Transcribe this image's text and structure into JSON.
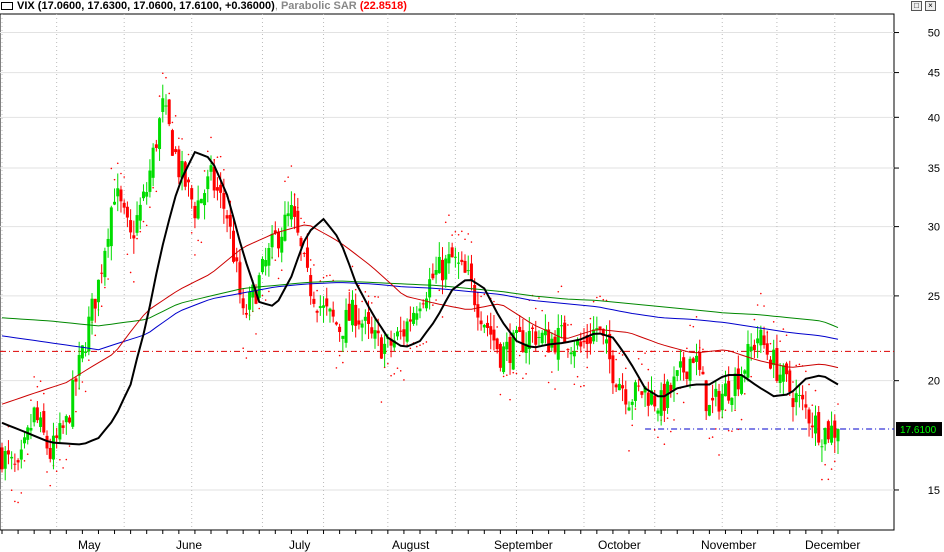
{
  "header": {
    "symbol": "VIX",
    "ohlc": "(17.0600, 17.6300, 17.0600, 17.6100, +0.36000)",
    "indicator": "Parabolic SAR",
    "indicator_value": "(22.8518)",
    "restore_icon": "restore-window-icon",
    "close_icon": "close-window-icon"
  },
  "colors": {
    "up_candle": "#00dd00",
    "down_candle": "#ff0000",
    "ma_fast": "#000000",
    "ma_red": "#cc0000",
    "ma_blue": "#0000cc",
    "ma_green": "#008800",
    "sar": "#ff0000",
    "resistance_line": "#dd0000",
    "support_line": "#0000cc",
    "price_box_bg": "#000000",
    "price_box_text": "#00ff00",
    "grid": "#bbbbbb"
  },
  "chart_data": {
    "type": "candlestick",
    "y_scale": "log",
    "ylim": [
      13.5,
      52.5
    ],
    "y_ticks": [
      15,
      20,
      25,
      30,
      35,
      40,
      45,
      50
    ],
    "x_labels": [
      "May",
      "June",
      "July",
      "August",
      "September",
      "October",
      "November",
      "December"
    ],
    "last_price_label": "17.6100",
    "horizontal_lines": [
      {
        "value": 21.6,
        "style": "dash-dot",
        "color": "red"
      },
      {
        "value": 17.61,
        "style": "dash-dot",
        "color": "blue"
      }
    ],
    "ma_fast": [
      [
        0,
        17.9
      ],
      [
        15,
        17.0
      ],
      [
        25,
        16.9
      ],
      [
        30,
        17.2
      ],
      [
        35,
        18.1
      ],
      [
        40,
        19.8
      ],
      [
        45,
        23.3
      ],
      [
        50,
        28.6
      ],
      [
        55,
        33.5
      ],
      [
        60,
        36.5
      ],
      [
        65,
        35.9
      ],
      [
        70,
        32.6
      ],
      [
        75,
        27.9
      ],
      [
        80,
        24.6
      ],
      [
        85,
        24.3
      ],
      [
        90,
        26.3
      ],
      [
        95,
        29.5
      ],
      [
        100,
        30.6
      ],
      [
        105,
        29.0
      ],
      [
        110,
        25.9
      ],
      [
        115,
        23.9
      ],
      [
        120,
        22.4
      ],
      [
        125,
        21.8
      ],
      [
        130,
        22.2
      ],
      [
        135,
        23.5
      ],
      [
        140,
        25.4
      ],
      [
        145,
        26.2
      ],
      [
        150,
        25.5
      ],
      [
        155,
        23.5
      ],
      [
        160,
        22.2
      ],
      [
        165,
        21.8
      ],
      [
        170,
        22.0
      ],
      [
        175,
        22.1
      ],
      [
        180,
        22.3
      ],
      [
        185,
        22.7
      ],
      [
        190,
        22.4
      ],
      [
        195,
        21.1
      ],
      [
        200,
        19.6
      ],
      [
        205,
        19.1
      ],
      [
        210,
        19.6
      ],
      [
        215,
        19.8
      ],
      [
        220,
        19.8
      ],
      [
        225,
        20.3
      ],
      [
        230,
        20.3
      ],
      [
        235,
        19.7
      ],
      [
        240,
        19.2
      ],
      [
        245,
        19.3
      ],
      [
        250,
        20.1
      ],
      [
        255,
        20.3
      ],
      [
        260,
        19.8
      ]
    ],
    "ma_red": [
      [
        0,
        18.8
      ],
      [
        20,
        19.9
      ],
      [
        35,
        21.5
      ],
      [
        45,
        24.0
      ],
      [
        55,
        25.4
      ],
      [
        65,
        26.5
      ],
      [
        75,
        28.4
      ],
      [
        85,
        29.5
      ],
      [
        95,
        30.2
      ],
      [
        105,
        28.8
      ],
      [
        115,
        27.0
      ],
      [
        125,
        25.0
      ],
      [
        135,
        24.5
      ],
      [
        145,
        24.1
      ],
      [
        155,
        24.5
      ],
      [
        165,
        23.2
      ],
      [
        175,
        22.3
      ],
      [
        185,
        22.9
      ],
      [
        195,
        22.7
      ],
      [
        205,
        22.0
      ],
      [
        215,
        21.5
      ],
      [
        225,
        21.7
      ],
      [
        235,
        21.1
      ],
      [
        245,
        20.7
      ],
      [
        255,
        20.9
      ],
      [
        260,
        20.7
      ]
    ],
    "ma_blue": [
      [
        0,
        22.5
      ],
      [
        15,
        22.1
      ],
      [
        30,
        21.7
      ],
      [
        45,
        22.6
      ],
      [
        55,
        24.0
      ],
      [
        65,
        24.8
      ],
      [
        75,
        25.2
      ],
      [
        85,
        25.6
      ],
      [
        95,
        25.8
      ],
      [
        105,
        25.9
      ],
      [
        115,
        25.8
      ],
      [
        125,
        25.6
      ],
      [
        135,
        25.5
      ],
      [
        145,
        25.3
      ],
      [
        155,
        25.1
      ],
      [
        165,
        24.7
      ],
      [
        175,
        24.5
      ],
      [
        185,
        24.3
      ],
      [
        195,
        23.9
      ],
      [
        205,
        23.6
      ],
      [
        215,
        23.5
      ],
      [
        225,
        23.3
      ],
      [
        235,
        23.0
      ],
      [
        245,
        22.7
      ],
      [
        255,
        22.5
      ],
      [
        260,
        22.3
      ]
    ],
    "ma_green": [
      [
        0,
        23.6
      ],
      [
        15,
        23.4
      ],
      [
        30,
        23.1
      ],
      [
        45,
        23.5
      ],
      [
        55,
        24.5
      ],
      [
        65,
        25.0
      ],
      [
        75,
        25.5
      ],
      [
        85,
        25.7
      ],
      [
        95,
        25.9
      ],
      [
        105,
        26.0
      ],
      [
        115,
        25.9
      ],
      [
        125,
        25.8
      ],
      [
        135,
        25.7
      ],
      [
        145,
        25.5
      ],
      [
        155,
        25.3
      ],
      [
        165,
        25.0
      ],
      [
        175,
        24.8
      ],
      [
        185,
        24.7
      ],
      [
        195,
        24.5
      ],
      [
        205,
        24.3
      ],
      [
        215,
        24.1
      ],
      [
        225,
        23.9
      ],
      [
        235,
        23.8
      ],
      [
        245,
        23.6
      ],
      [
        255,
        23.4
      ],
      [
        260,
        23.0
      ]
    ],
    "price_anchors": [
      [
        0,
        16.5
      ],
      [
        5,
        15.6
      ],
      [
        10,
        18.3
      ],
      [
        15,
        16.5
      ],
      [
        20,
        17.8
      ],
      [
        25,
        21.5
      ],
      [
        30,
        25.8
      ],
      [
        35,
        33.0
      ],
      [
        40,
        29.0
      ],
      [
        45,
        33.0
      ],
      [
        50,
        41.0
      ],
      [
        55,
        35.0
      ],
      [
        60,
        31.5
      ],
      [
        65,
        34.0
      ],
      [
        70,
        31.0
      ],
      [
        75,
        23.5
      ],
      [
        80,
        26.0
      ],
      [
        85,
        29.0
      ],
      [
        90,
        31.0
      ],
      [
        95,
        26.0
      ],
      [
        100,
        24.0
      ],
      [
        105,
        23.0
      ],
      [
        110,
        24.0
      ],
      [
        115,
        22.3
      ],
      [
        120,
        21.8
      ],
      [
        125,
        22.8
      ],
      [
        130,
        25.0
      ],
      [
        135,
        26.5
      ],
      [
        140,
        27.5
      ],
      [
        145,
        26.0
      ],
      [
        150,
        23.5
      ],
      [
        155,
        21.5
      ],
      [
        160,
        22.0
      ],
      [
        165,
        22.7
      ],
      [
        170,
        22.2
      ],
      [
        175,
        22.5
      ],
      [
        180,
        21.8
      ],
      [
        185,
        23.0
      ],
      [
        190,
        20.6
      ],
      [
        195,
        19.2
      ],
      [
        200,
        19.5
      ],
      [
        205,
        18.8
      ],
      [
        210,
        20.0
      ],
      [
        215,
        21.5
      ],
      [
        220,
        18.5
      ],
      [
        225,
        19.5
      ],
      [
        230,
        20.5
      ],
      [
        235,
        22.5
      ],
      [
        240,
        21.0
      ],
      [
        245,
        19.5
      ],
      [
        250,
        18.5
      ],
      [
        255,
        17.5
      ],
      [
        260,
        17.61
      ]
    ]
  }
}
